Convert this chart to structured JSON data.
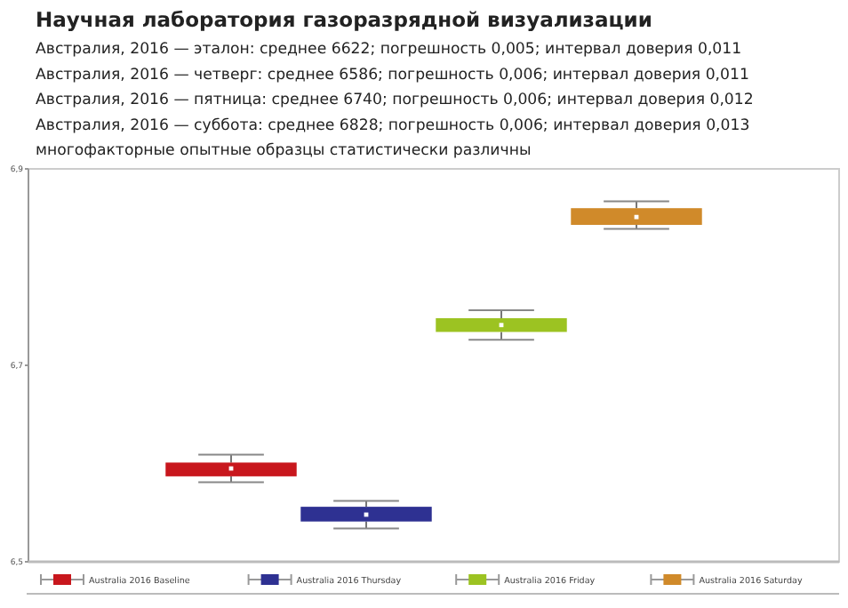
{
  "chart_data": {
    "type": "box",
    "title": "Научная лаборатория газоразрядной визуализации",
    "annotations": [
      "Австралия, 2016 — эталон: среднее 6622; погрешность 0,005; интервал доверия 0,011",
      "Австралия, 2016 — четверг: среднее 6586; погрешность 0,006; интервал доверия 0,011",
      "Австралия, 2016 — пятница: среднее 6740; погрешность 0,006; интервал доверия 0,012",
      "Австралия, 2016 — суббота: среднее 6828; погрешность 0,006; интервал доверия 0,013",
      "многофакторные опытные образцы статистически различны"
    ],
    "categories": [
      null,
      null,
      null,
      null,
      null,
      null
    ],
    "series": [
      {
        "name": "Australia 2016 Baseline",
        "color": "#c8171d",
        "boxes": [
          null,
          {
            "low": 6.581,
            "q1": 6.587,
            "median": 6.595,
            "q3": 6.601,
            "high": 6.609
          },
          null,
          null,
          null,
          null
        ]
      },
      {
        "name": "Australia 2016 Thursday",
        "color": "#2e3192",
        "boxes": [
          null,
          null,
          {
            "low": 6.534,
            "q1": 6.541,
            "median": 6.548,
            "q3": 6.556,
            "high": 6.562
          },
          null,
          null,
          null
        ]
      },
      {
        "name": "Australia 2016 Friday",
        "color": "#9cc322",
        "boxes": [
          null,
          null,
          null,
          {
            "low": 6.726,
            "q1": 6.734,
            "median": 6.741,
            "q3": 6.748,
            "high": 6.756
          },
          null,
          null
        ]
      },
      {
        "name": "Australia 2016 Saturday",
        "color": "#d08a2a",
        "boxes": [
          null,
          null,
          null,
          null,
          {
            "low": 6.839,
            "q1": 6.843,
            "median": 6.851,
            "q3": 6.86,
            "high": 6.867
          },
          null
        ]
      }
    ],
    "ylim": [
      6.5,
      6.9
    ],
    "yticks": [
      {
        "value": 6.5,
        "label": "6,5"
      },
      {
        "value": 6.7,
        "label": "6,7"
      },
      {
        "value": 6.9,
        "label": "6,9"
      }
    ],
    "legend": "bottom"
  }
}
